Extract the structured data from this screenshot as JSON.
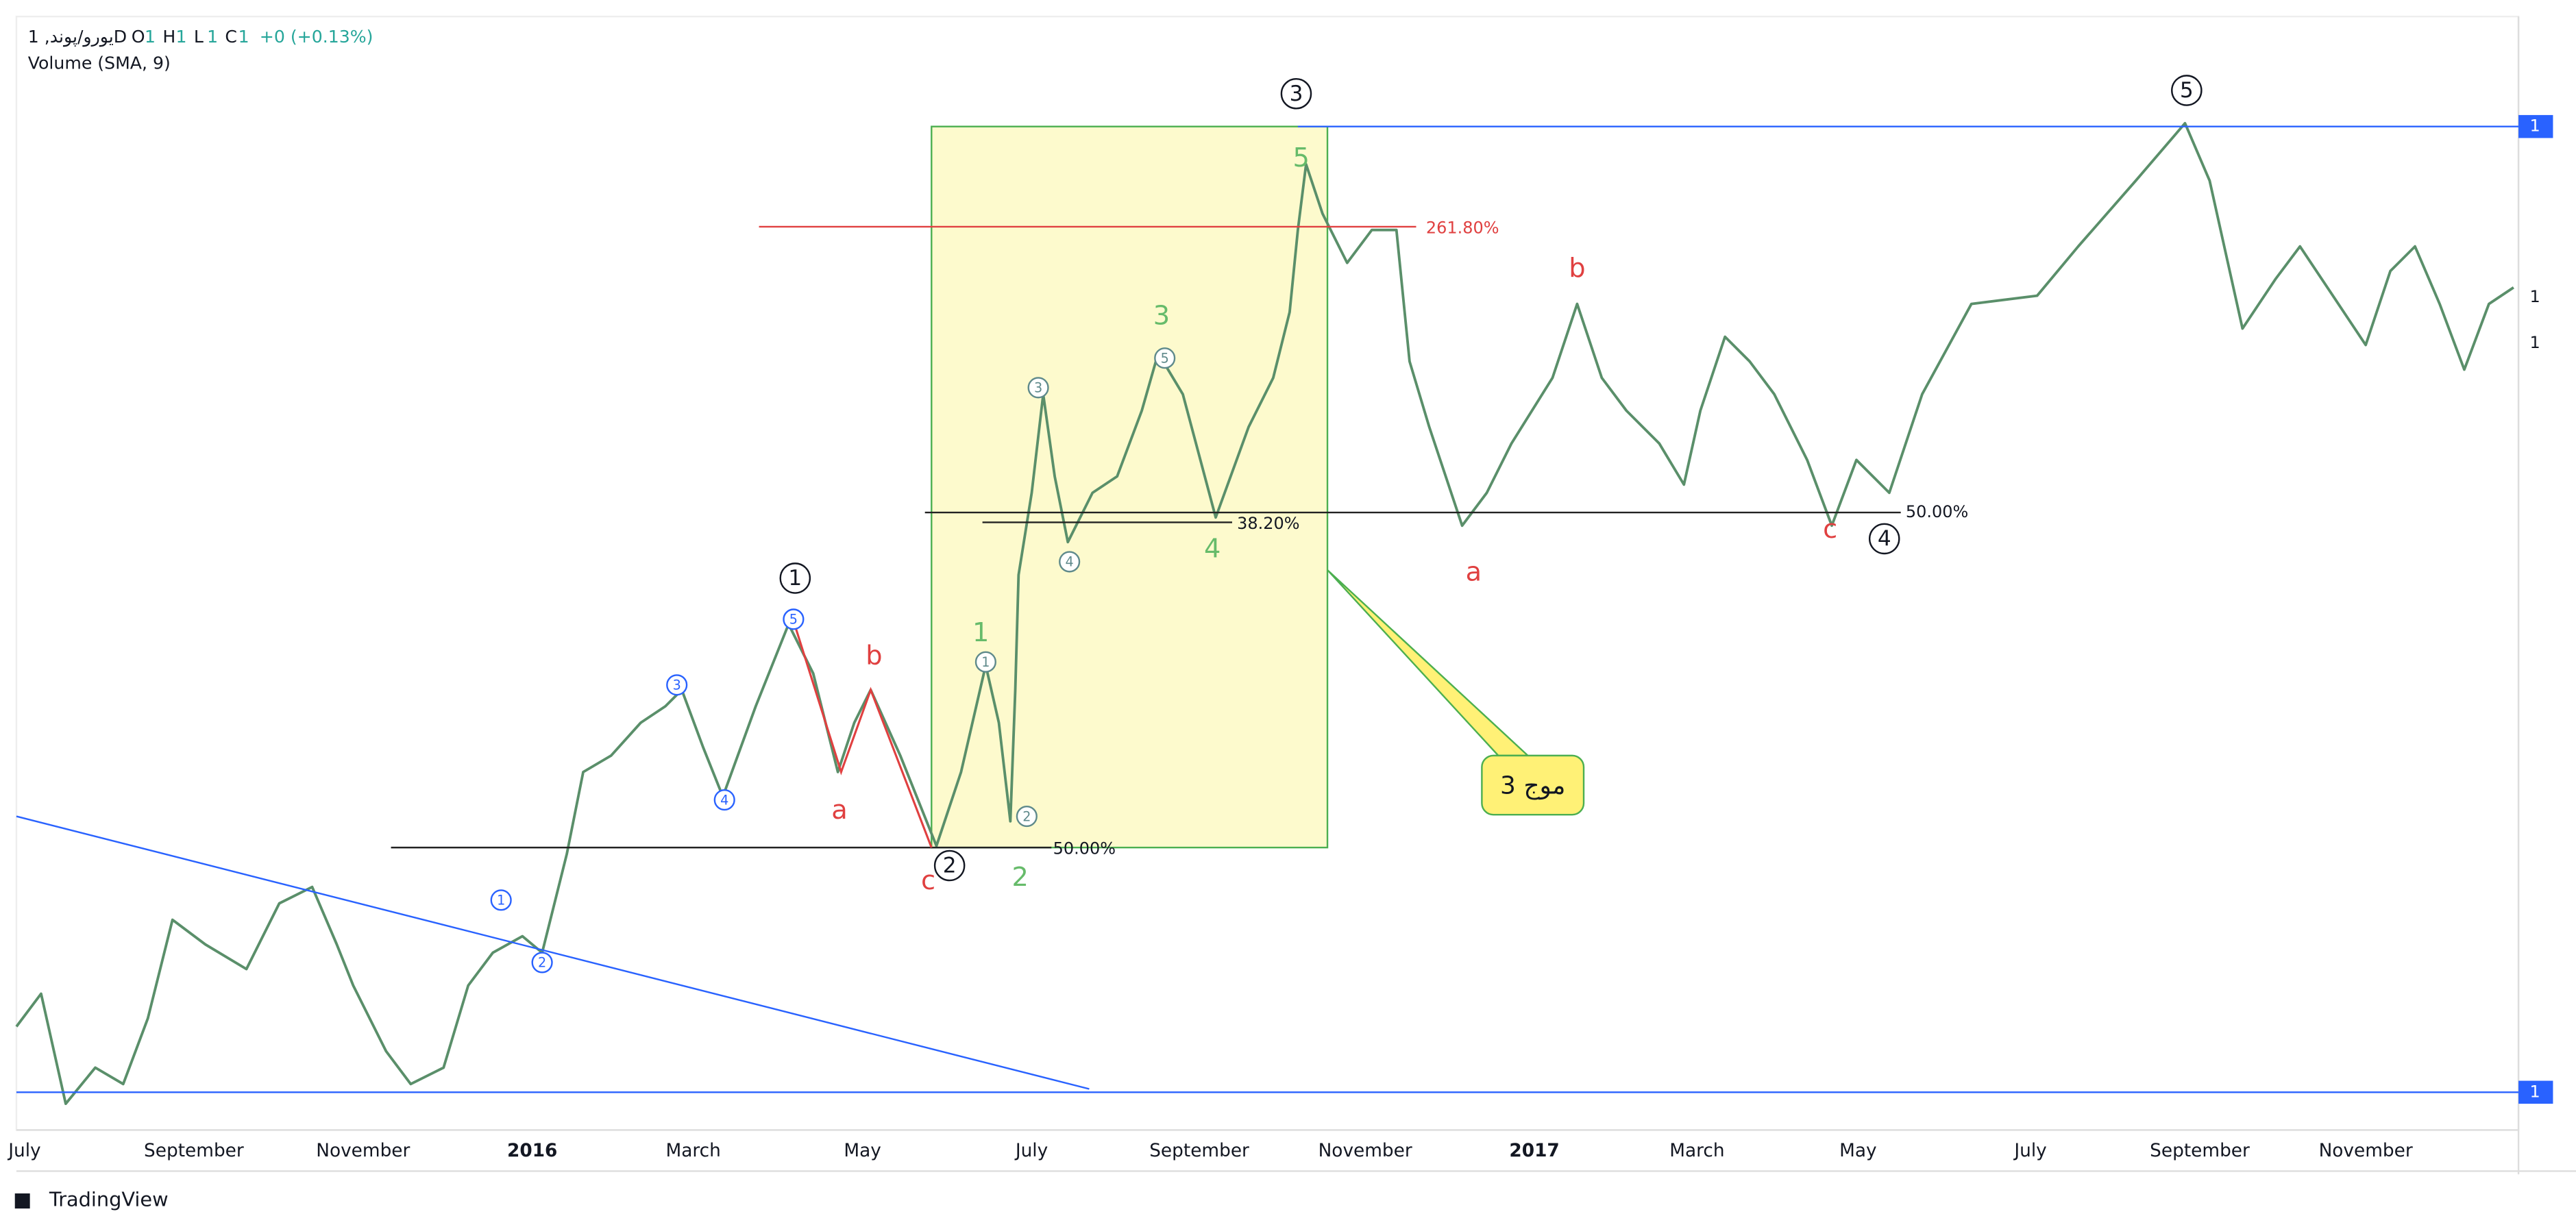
{
  "header": {
    "symbol": "1 ,یورو/پوندD",
    "ohlc": [
      {
        "key": "O",
        "value": "1"
      },
      {
        "key": "H",
        "value": "1"
      },
      {
        "key": "L",
        "value": "1"
      },
      {
        "key": "C",
        "value": "1"
      }
    ],
    "change": "+0 (+0.13%)",
    "indicator": "Volume (SMA, 9)"
  },
  "time_axis": [
    "July",
    "September",
    "November",
    "2016",
    "March",
    "May",
    "July",
    "September",
    "November",
    "2017",
    "March",
    "May",
    "July",
    "September",
    "November"
  ],
  "price_axis": [
    "1",
    "1",
    "1",
    "1"
  ],
  "waves": {
    "primary": [
      "1",
      "2",
      "3",
      "4",
      "5"
    ],
    "minor_blue": [
      "1",
      "2",
      "3",
      "4",
      "5"
    ],
    "minor_gray": [
      "1",
      "2",
      "3",
      "4",
      "5"
    ],
    "green": [
      "1",
      "2",
      "3",
      "4",
      "5"
    ],
    "correction": [
      "a",
      "b",
      "c",
      "a",
      "b",
      "c"
    ]
  },
  "fib_levels": [
    "261.80%",
    "38.20%",
    "50.00%",
    "50.00%"
  ],
  "callout": "موج 3",
  "footer": "TradingView"
}
